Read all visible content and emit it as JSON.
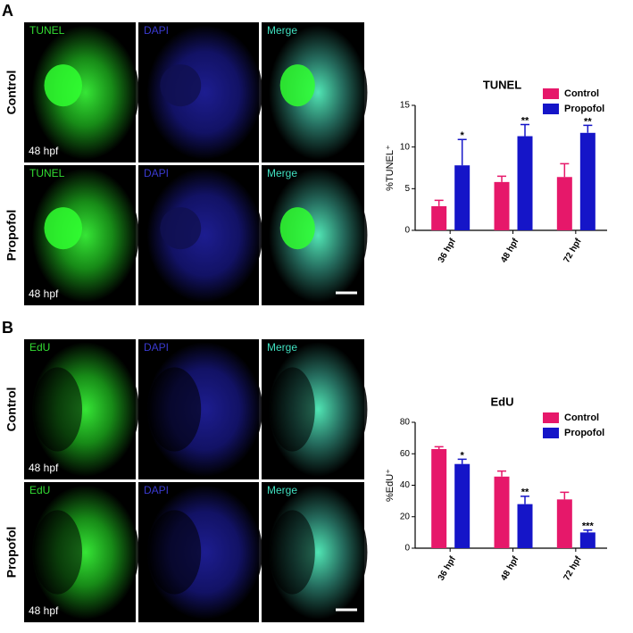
{
  "figure_panels": [
    {
      "letter": "A",
      "rows": [
        "Control",
        "Propofol"
      ],
      "columns": [
        "TUNEL",
        "DAPI",
        "Merge"
      ],
      "stage": "48 hpf"
    },
    {
      "letter": "B",
      "rows": [
        "Control",
        "Propofol"
      ],
      "columns": [
        "EdU",
        "DAPI",
        "Merge"
      ],
      "stage": "48 hpf"
    }
  ],
  "chart_data": [
    {
      "type": "bar",
      "title": "TUNEL",
      "y_label": "%TUNEL⁺",
      "categories": [
        "36 hpf",
        "48 hpf",
        "72 hpf"
      ],
      "series": [
        {
          "name": "Control",
          "color": "#e6186a",
          "values": [
            2.9,
            5.8,
            6.4
          ],
          "errors": [
            0.7,
            0.7,
            1.6
          ]
        },
        {
          "name": "Propofol",
          "color": "#1515c8",
          "values": [
            7.8,
            11.3,
            11.7
          ],
          "errors": [
            3.1,
            1.4,
            0.9
          ],
          "significance": [
            "*",
            "**",
            "**"
          ]
        }
      ],
      "ylim": [
        0,
        15
      ],
      "yticks": [
        0,
        5,
        10,
        15
      ],
      "legend": "upper-right"
    },
    {
      "type": "bar",
      "title": "EdU",
      "y_label": "%EdU⁺",
      "categories": [
        "36 hpf",
        "48 hpf",
        "72 hpf"
      ],
      "series": [
        {
          "name": "Control",
          "color": "#e6186a",
          "values": [
            63,
            45.5,
            31
          ],
          "errors": [
            1.5,
            3.5,
            4.5
          ]
        },
        {
          "name": "Propofol",
          "color": "#1515c8",
          "values": [
            53.5,
            28,
            10
          ],
          "errors": [
            3,
            5,
            1.5
          ],
          "significance": [
            "*",
            "**",
            "***"
          ]
        }
      ],
      "ylim": [
        0,
        80
      ],
      "yticks": [
        0,
        20,
        40,
        60,
        80
      ],
      "legend": "upper-right"
    }
  ]
}
